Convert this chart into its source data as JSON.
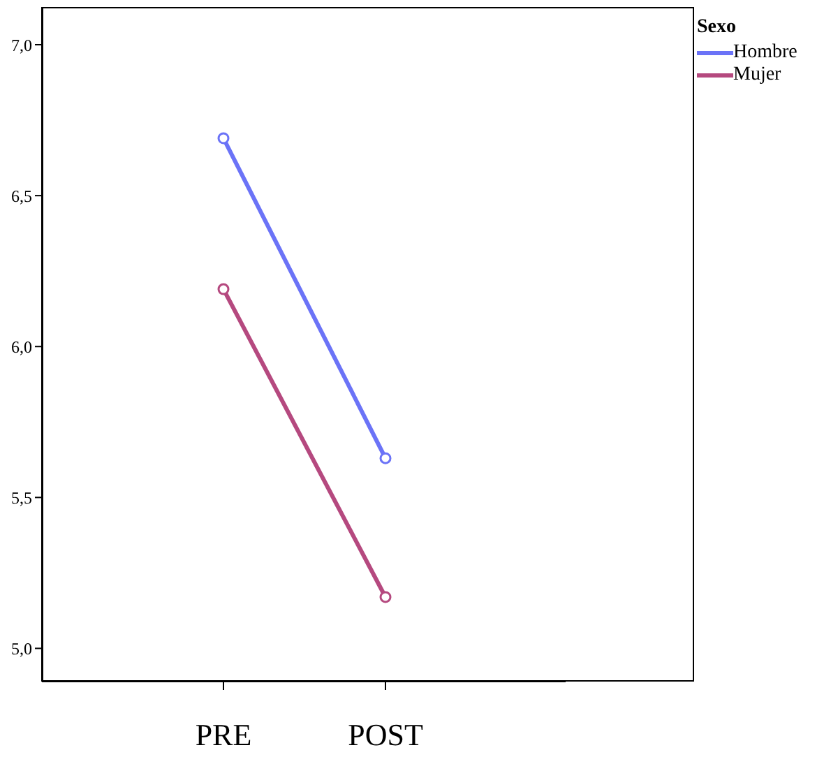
{
  "chart_data": {
    "type": "line",
    "categories": [
      "PRE",
      "POST"
    ],
    "series": [
      {
        "name": "Mujer",
        "color": "#b5497f",
        "values": [
          6.19,
          5.17
        ]
      },
      {
        "name": "Hombre",
        "color": "#6b73f7",
        "values": [
          6.69,
          5.63
        ]
      }
    ],
    "ylim": [
      4.89,
      7.125
    ],
    "yticks": [
      {
        "value": 5,
        "label": "5,0"
      },
      {
        "value": 5.5,
        "label": "5,5"
      },
      {
        "value": 6,
        "label": "6,0"
      },
      {
        "value": 6.5,
        "label": "6,5"
      },
      {
        "value": 7,
        "label": "7,0"
      }
    ],
    "legend": "top right",
    "legend_title": "Sexo",
    "marker": "circle",
    "line_style": "solid",
    "grid": false
  }
}
